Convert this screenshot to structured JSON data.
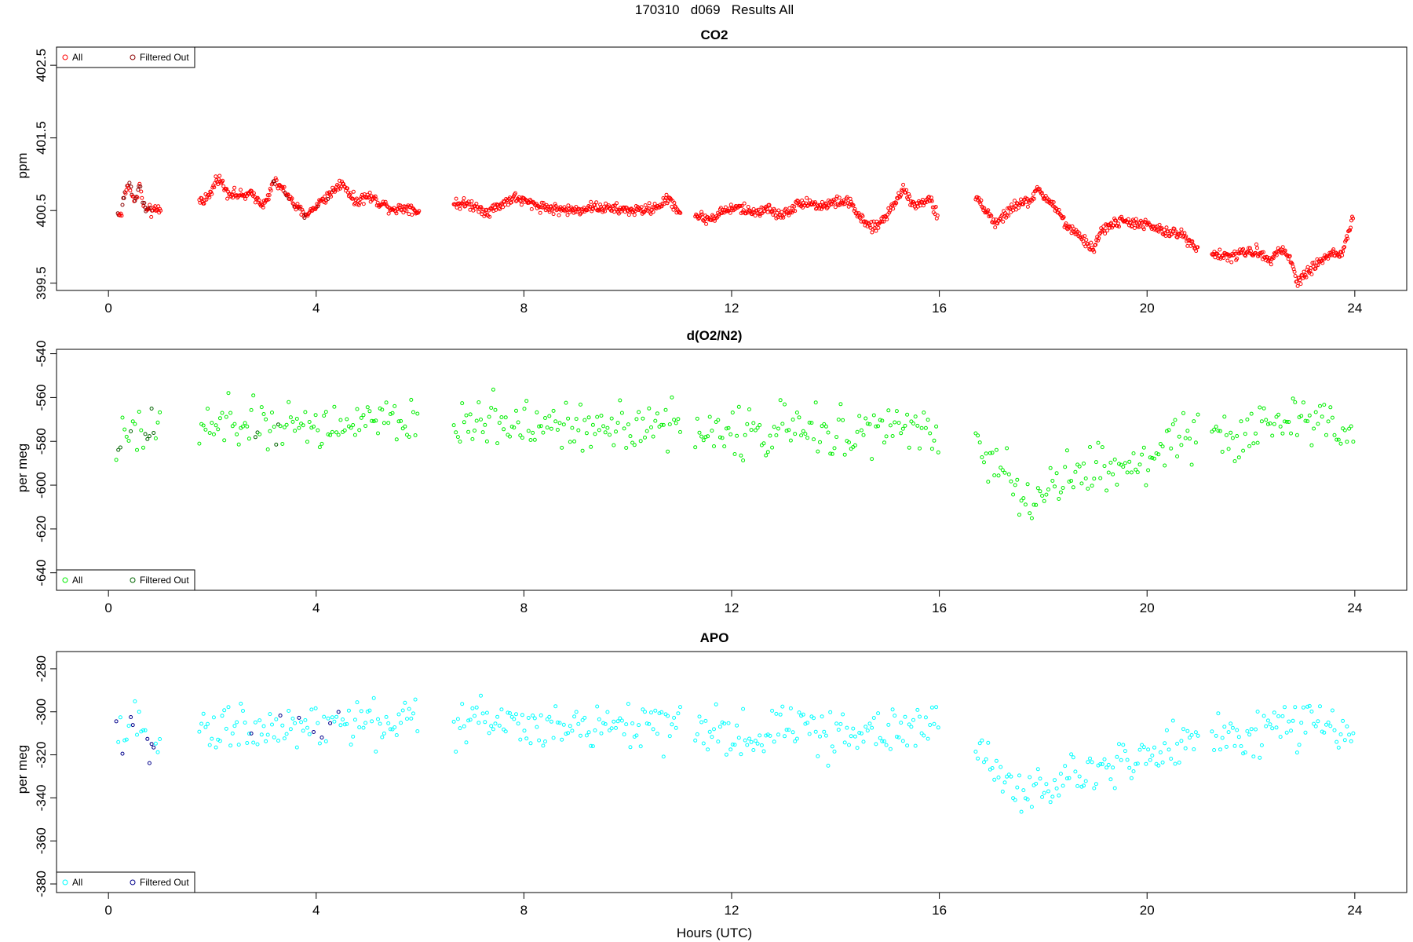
{
  "figure": {
    "title": "170310   d069   Results All",
    "xlabel": "Hours (UTC)"
  },
  "chart_data": [
    {
      "type": "scatter",
      "title": "CO2",
      "xlabel": "",
      "ylabel": "ppm",
      "xlim": [
        -1.0,
        25.0
      ],
      "ylim": [
        399.4,
        402.75
      ],
      "xticks": [
        0,
        4,
        8,
        12,
        16,
        20,
        24
      ],
      "yticks": [
        399.5,
        400.5,
        401.5,
        402.5
      ],
      "grid": false,
      "legend_placement": "top-left",
      "legend": [
        "All",
        "Filtered Out"
      ],
      "colors": {
        "all": "#ff0000",
        "filtered": "#8b0000"
      },
      "anchors": [
        [
          0.25,
          400.45
        ],
        [
          0.3,
          400.7
        ],
        [
          0.4,
          400.9
        ],
        [
          0.5,
          400.6
        ],
        [
          0.6,
          400.85
        ],
        [
          0.7,
          400.5
        ],
        [
          0.9,
          400.5
        ],
        [
          1.0,
          400.52
        ],
        [
          1.75,
          400.63
        ],
        [
          1.95,
          400.7
        ],
        [
          2.1,
          400.97
        ],
        [
          2.3,
          400.75
        ],
        [
          2.55,
          400.7
        ],
        [
          2.8,
          400.72
        ],
        [
          3.0,
          400.58
        ],
        [
          3.2,
          400.9
        ],
        [
          3.45,
          400.72
        ],
        [
          3.6,
          400.55
        ],
        [
          3.8,
          400.43
        ],
        [
          4.05,
          400.6
        ],
        [
          4.3,
          400.75
        ],
        [
          4.5,
          400.9
        ],
        [
          4.75,
          400.62
        ],
        [
          5.0,
          400.7
        ],
        [
          5.25,
          400.6
        ],
        [
          5.5,
          400.52
        ],
        [
          5.8,
          400.55
        ],
        [
          5.95,
          400.48
        ],
        [
          6.7,
          400.6
        ],
        [
          7.0,
          400.58
        ],
        [
          7.3,
          400.48
        ],
        [
          7.55,
          400.58
        ],
        [
          7.8,
          400.68
        ],
        [
          8.2,
          400.58
        ],
        [
          8.6,
          400.52
        ],
        [
          9.0,
          400.5
        ],
        [
          9.3,
          400.55
        ],
        [
          9.6,
          400.53
        ],
        [
          9.9,
          400.51
        ],
        [
          10.2,
          400.5
        ],
        [
          10.5,
          400.53
        ],
        [
          10.8,
          400.66
        ],
        [
          11.0,
          400.48
        ],
        [
          11.35,
          400.42
        ],
        [
          11.6,
          400.38
        ],
        [
          11.85,
          400.5
        ],
        [
          12.15,
          400.54
        ],
        [
          12.4,
          400.47
        ],
        [
          12.7,
          400.53
        ],
        [
          12.9,
          400.43
        ],
        [
          13.1,
          400.5
        ],
        [
          13.4,
          400.63
        ],
        [
          13.7,
          400.56
        ],
        [
          14.1,
          400.63
        ],
        [
          14.3,
          400.6
        ],
        [
          14.5,
          400.36
        ],
        [
          14.75,
          400.25
        ],
        [
          15.0,
          400.45
        ],
        [
          15.3,
          400.8
        ],
        [
          15.55,
          400.56
        ],
        [
          15.8,
          400.68
        ],
        [
          15.95,
          400.44
        ],
        [
          16.75,
          400.65
        ],
        [
          17.1,
          400.3
        ],
        [
          17.4,
          400.55
        ],
        [
          17.7,
          400.62
        ],
        [
          17.9,
          400.77
        ],
        [
          18.15,
          400.62
        ],
        [
          18.5,
          400.25
        ],
        [
          18.85,
          400.05
        ],
        [
          18.95,
          399.95
        ],
        [
          19.1,
          400.2
        ],
        [
          19.35,
          400.33
        ],
        [
          19.6,
          400.35
        ],
        [
          20.0,
          400.3
        ],
        [
          20.35,
          400.2
        ],
        [
          20.65,
          400.18
        ],
        [
          20.95,
          400.0
        ],
        [
          21.3,
          399.9
        ],
        [
          21.6,
          399.86
        ],
        [
          21.85,
          399.92
        ],
        [
          22.1,
          399.94
        ],
        [
          22.35,
          399.82
        ],
        [
          22.55,
          399.99
        ],
        [
          22.75,
          399.85
        ],
        [
          22.9,
          399.5
        ],
        [
          23.05,
          399.65
        ],
        [
          23.2,
          399.72
        ],
        [
          23.4,
          399.85
        ],
        [
          23.6,
          399.91
        ],
        [
          23.75,
          399.88
        ],
        [
          23.95,
          400.38
        ]
      ],
      "segments": [
        [
          0.18,
          1.02
        ],
        [
          1.75,
          5.98
        ],
        [
          6.65,
          11.02
        ],
        [
          11.3,
          15.98
        ],
        [
          16.7,
          20.98
        ],
        [
          21.25,
          23.98
        ]
      ],
      "jitter": 0.045,
      "step": 0.015
    },
    {
      "type": "scatter",
      "title": "d(O2/N2)",
      "xlabel": "",
      "ylabel": "per meg",
      "xlim": [
        -1.0,
        25.0
      ],
      "ylim": [
        -648,
        -538
      ],
      "xticks": [
        0,
        4,
        8,
        12,
        16,
        20,
        24
      ],
      "yticks": [
        -640,
        -620,
        -600,
        -580,
        -560,
        -540
      ],
      "grid": false,
      "legend_placement": "bottom-left",
      "legend": [
        "All",
        "Filtered Out"
      ],
      "colors": {
        "all": "#00ee00",
        "filtered": "#006400"
      },
      "anchors": [
        [
          0.2,
          -582
        ],
        [
          0.35,
          -578
        ],
        [
          0.5,
          -575
        ],
        [
          0.7,
          -578
        ],
        [
          0.95,
          -575
        ],
        [
          1.8,
          -574
        ],
        [
          2.5,
          -572
        ],
        [
          3.0,
          -574
        ],
        [
          3.5,
          -572
        ],
        [
          4.0,
          -573
        ],
        [
          4.5,
          -572
        ],
        [
          5.0,
          -571
        ],
        [
          5.5,
          -572
        ],
        [
          5.95,
          -572
        ],
        [
          6.7,
          -572
        ],
        [
          7.3,
          -570
        ],
        [
          8.0,
          -572
        ],
        [
          8.5,
          -574
        ],
        [
          9.0,
          -574
        ],
        [
          9.5,
          -571
        ],
        [
          10.0,
          -572
        ],
        [
          10.5,
          -572
        ],
        [
          11.0,
          -575
        ],
        [
          11.3,
          -576
        ],
        [
          12.0,
          -576
        ],
        [
          12.5,
          -577
        ],
        [
          13.0,
          -573
        ],
        [
          13.5,
          -577
        ],
        [
          14.0,
          -576
        ],
        [
          14.5,
          -575
        ],
        [
          15.0,
          -574
        ],
        [
          15.5,
          -575
        ],
        [
          15.95,
          -575
        ],
        [
          16.75,
          -585
        ],
        [
          17.2,
          -596
        ],
        [
          17.6,
          -603
        ],
        [
          18.1,
          -604
        ],
        [
          18.5,
          -596
        ],
        [
          19.0,
          -595
        ],
        [
          19.5,
          -592
        ],
        [
          20.0,
          -589
        ],
        [
          20.5,
          -579
        ],
        [
          20.95,
          -576
        ],
        [
          21.3,
          -575
        ],
        [
          21.8,
          -580
        ],
        [
          22.2,
          -573
        ],
        [
          22.6,
          -570
        ],
        [
          23.0,
          -570
        ],
        [
          23.5,
          -570
        ],
        [
          23.95,
          -574
        ]
      ],
      "segments": [
        [
          0.15,
          1.0
        ],
        [
          1.75,
          5.98
        ],
        [
          6.65,
          11.02
        ],
        [
          11.3,
          15.98
        ],
        [
          16.7,
          20.98
        ],
        [
          21.25,
          23.98
        ]
      ],
      "jitter": 7,
      "step": 0.04
    },
    {
      "type": "scatter",
      "title": "APO",
      "xlabel": "",
      "ylabel": "per meg",
      "xlim": [
        -1.0,
        25.0
      ],
      "ylim": [
        -384,
        -272
      ],
      "xticks": [
        0,
        4,
        8,
        12,
        16,
        20,
        24
      ],
      "yticks": [
        -380,
        -360,
        -340,
        -320,
        -300,
        -280
      ],
      "grid": false,
      "legend_placement": "bottom-left",
      "legend": [
        "All",
        "Filtered Out"
      ],
      "colors": {
        "all": "#00ffff",
        "filtered": "#00008b"
      },
      "anchors": [
        [
          0.2,
          -312
        ],
        [
          0.4,
          -308
        ],
        [
          0.6,
          -310
        ],
        [
          0.95,
          -310
        ],
        [
          1.8,
          -308
        ],
        [
          2.5,
          -307
        ],
        [
          3.0,
          -308
        ],
        [
          3.5,
          -306
        ],
        [
          4.0,
          -308
        ],
        [
          4.5,
          -306
        ],
        [
          5.0,
          -305
        ],
        [
          5.5,
          -305
        ],
        [
          5.95,
          -306
        ],
        [
          6.7,
          -305
        ],
        [
          7.3,
          -302
        ],
        [
          8.0,
          -304
        ],
        [
          8.5,
          -307
        ],
        [
          9.0,
          -308
        ],
        [
          9.5,
          -306
        ],
        [
          10.0,
          -306
        ],
        [
          10.5,
          -306
        ],
        [
          11.0,
          -309
        ],
        [
          11.3,
          -310
        ],
        [
          12.0,
          -311
        ],
        [
          12.5,
          -312
        ],
        [
          13.0,
          -305
        ],
        [
          13.5,
          -310
        ],
        [
          14.0,
          -310
        ],
        [
          14.5,
          -309
        ],
        [
          15.0,
          -308
        ],
        [
          15.5,
          -308
        ],
        [
          15.95,
          -308
        ],
        [
          16.75,
          -318
        ],
        [
          17.2,
          -330
        ],
        [
          17.6,
          -337
        ],
        [
          18.1,
          -337
        ],
        [
          18.5,
          -330
        ],
        [
          19.0,
          -328
        ],
        [
          19.5,
          -325
        ],
        [
          20.0,
          -322
        ],
        [
          20.5,
          -313
        ],
        [
          20.95,
          -310
        ],
        [
          21.3,
          -309
        ],
        [
          21.8,
          -314
        ],
        [
          22.2,
          -307
        ],
        [
          22.6,
          -306
        ],
        [
          23.0,
          -307
        ],
        [
          23.5,
          -307
        ],
        [
          23.95,
          -310
        ]
      ],
      "segments": [
        [
          0.15,
          1.0
        ],
        [
          1.75,
          5.98
        ],
        [
          6.65,
          11.02
        ],
        [
          11.3,
          15.98
        ],
        [
          16.7,
          20.98
        ],
        [
          21.25,
          23.98
        ]
      ],
      "jitter": 7,
      "step": 0.04
    }
  ]
}
